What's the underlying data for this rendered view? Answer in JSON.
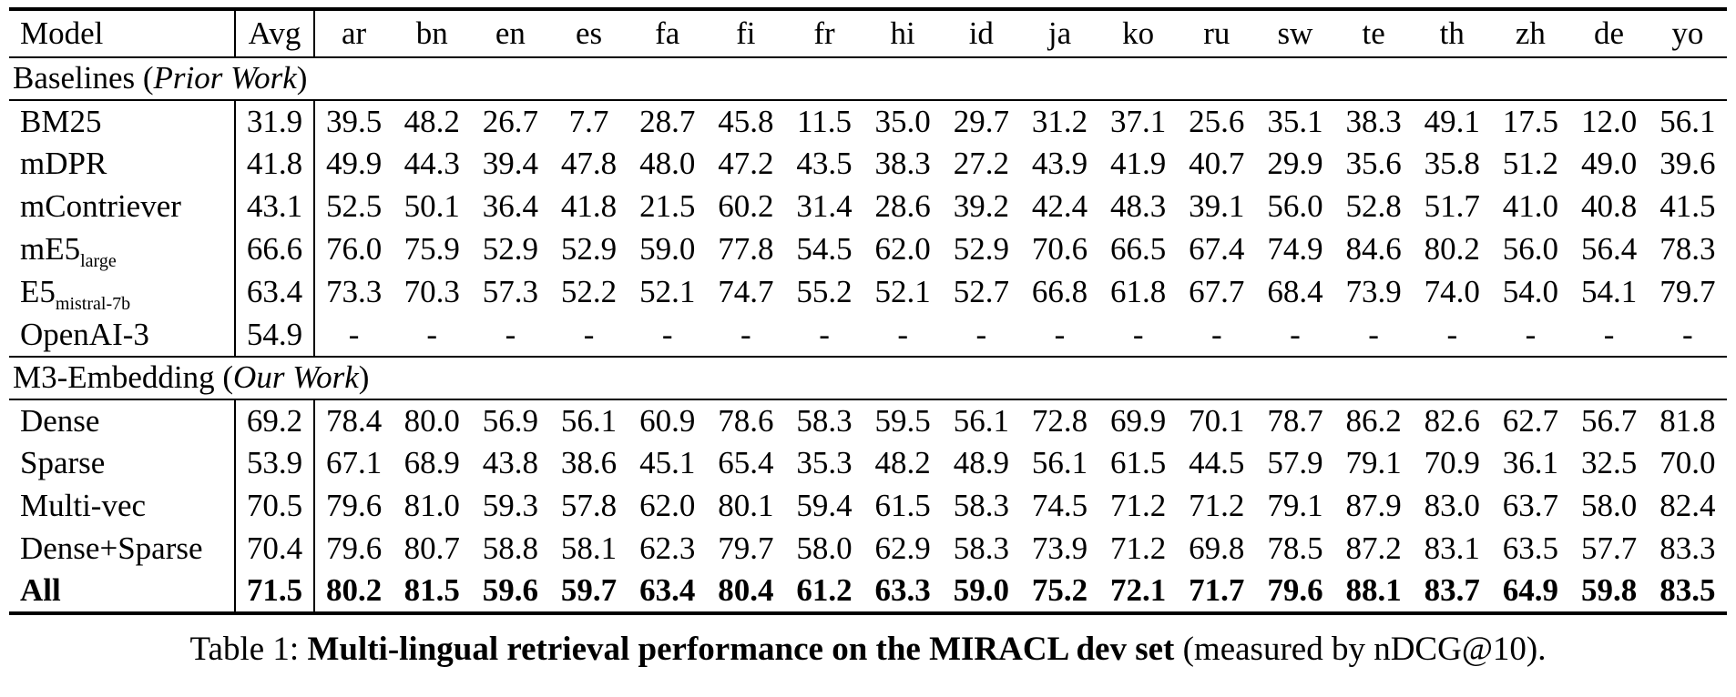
{
  "table": {
    "columns": [
      "Model",
      "Avg",
      "ar",
      "bn",
      "en",
      "es",
      "fa",
      "fi",
      "fr",
      "hi",
      "id",
      "ja",
      "ko",
      "ru",
      "sw",
      "te",
      "th",
      "zh",
      "de",
      "yo"
    ],
    "sections": [
      {
        "header": {
          "prefix": "Baselines (",
          "italic": "Prior Work",
          "suffix": ")"
        },
        "rows": [
          {
            "model": "BM25",
            "sub": "",
            "bold": false,
            "avg": "31.9",
            "values": [
              "39.5",
              "48.2",
              "26.7",
              "7.7",
              "28.7",
              "45.8",
              "11.5",
              "35.0",
              "29.7",
              "31.2",
              "37.1",
              "25.6",
              "35.1",
              "38.3",
              "49.1",
              "17.5",
              "12.0",
              "56.1"
            ]
          },
          {
            "model": "mDPR",
            "sub": "",
            "bold": false,
            "avg": "41.8",
            "values": [
              "49.9",
              "44.3",
              "39.4",
              "47.8",
              "48.0",
              "47.2",
              "43.5",
              "38.3",
              "27.2",
              "43.9",
              "41.9",
              "40.7",
              "29.9",
              "35.6",
              "35.8",
              "51.2",
              "49.0",
              "39.6"
            ]
          },
          {
            "model": "mContriever",
            "sub": "",
            "bold": false,
            "avg": "43.1",
            "values": [
              "52.5",
              "50.1",
              "36.4",
              "41.8",
              "21.5",
              "60.2",
              "31.4",
              "28.6",
              "39.2",
              "42.4",
              "48.3",
              "39.1",
              "56.0",
              "52.8",
              "51.7",
              "41.0",
              "40.8",
              "41.5"
            ]
          },
          {
            "model": "mE5",
            "sub": "large",
            "bold": false,
            "avg": "66.6",
            "values": [
              "76.0",
              "75.9",
              "52.9",
              "52.9",
              "59.0",
              "77.8",
              "54.5",
              "62.0",
              "52.9",
              "70.6",
              "66.5",
              "67.4",
              "74.9",
              "84.6",
              "80.2",
              "56.0",
              "56.4",
              "78.3"
            ]
          },
          {
            "model": "E5",
            "sub": "mistral-7b",
            "bold": false,
            "avg": "63.4",
            "values": [
              "73.3",
              "70.3",
              "57.3",
              "52.2",
              "52.1",
              "74.7",
              "55.2",
              "52.1",
              "52.7",
              "66.8",
              "61.8",
              "67.7",
              "68.4",
              "73.9",
              "74.0",
              "54.0",
              "54.1",
              "79.7"
            ]
          },
          {
            "model": "OpenAI-3",
            "sub": "",
            "bold": false,
            "avg": "54.9",
            "values": [
              "-",
              "-",
              "-",
              "-",
              "-",
              "-",
              "-",
              "-",
              "-",
              "-",
              "-",
              "-",
              "-",
              "-",
              "-",
              "-",
              "-",
              "-"
            ]
          }
        ]
      },
      {
        "header": {
          "prefix": "M3-Embedding (",
          "italic": "Our Work",
          "suffix": ")"
        },
        "rows": [
          {
            "model": "Dense",
            "sub": "",
            "bold": false,
            "avg": "69.2",
            "values": [
              "78.4",
              "80.0",
              "56.9",
              "56.1",
              "60.9",
              "78.6",
              "58.3",
              "59.5",
              "56.1",
              "72.8",
              "69.9",
              "70.1",
              "78.7",
              "86.2",
              "82.6",
              "62.7",
              "56.7",
              "81.8"
            ]
          },
          {
            "model": "Sparse",
            "sub": "",
            "bold": false,
            "avg": "53.9",
            "values": [
              "67.1",
              "68.9",
              "43.8",
              "38.6",
              "45.1",
              "65.4",
              "35.3",
              "48.2",
              "48.9",
              "56.1",
              "61.5",
              "44.5",
              "57.9",
              "79.1",
              "70.9",
              "36.1",
              "32.5",
              "70.0"
            ]
          },
          {
            "model": "Multi-vec",
            "sub": "",
            "bold": false,
            "avg": "70.5",
            "values": [
              "79.6",
              "81.0",
              "59.3",
              "57.8",
              "62.0",
              "80.1",
              "59.4",
              "61.5",
              "58.3",
              "74.5",
              "71.2",
              "71.2",
              "79.1",
              "87.9",
              "83.0",
              "63.7",
              "58.0",
              "82.4"
            ]
          },
          {
            "model": "Dense+Sparse",
            "sub": "",
            "bold": false,
            "avg": "70.4",
            "values": [
              "79.6",
              "80.7",
              "58.8",
              "58.1",
              "62.3",
              "79.7",
              "58.0",
              "62.9",
              "58.3",
              "73.9",
              "71.2",
              "69.8",
              "78.5",
              "87.2",
              "83.1",
              "63.5",
              "57.7",
              "83.3"
            ]
          },
          {
            "model": "All",
            "sub": "",
            "bold": true,
            "avg": "71.5",
            "values": [
              "80.2",
              "81.5",
              "59.6",
              "59.7",
              "63.4",
              "80.4",
              "61.2",
              "63.3",
              "59.0",
              "75.2",
              "72.1",
              "71.7",
              "79.6",
              "88.1",
              "83.7",
              "64.9",
              "59.8",
              "83.5"
            ]
          }
        ]
      }
    ]
  },
  "caption": {
    "prefix": "Table 1: ",
    "bold": "Multi-lingual retrieval performance on the MIRACL dev set",
    "suffix": " (measured by nDCG@10)."
  }
}
